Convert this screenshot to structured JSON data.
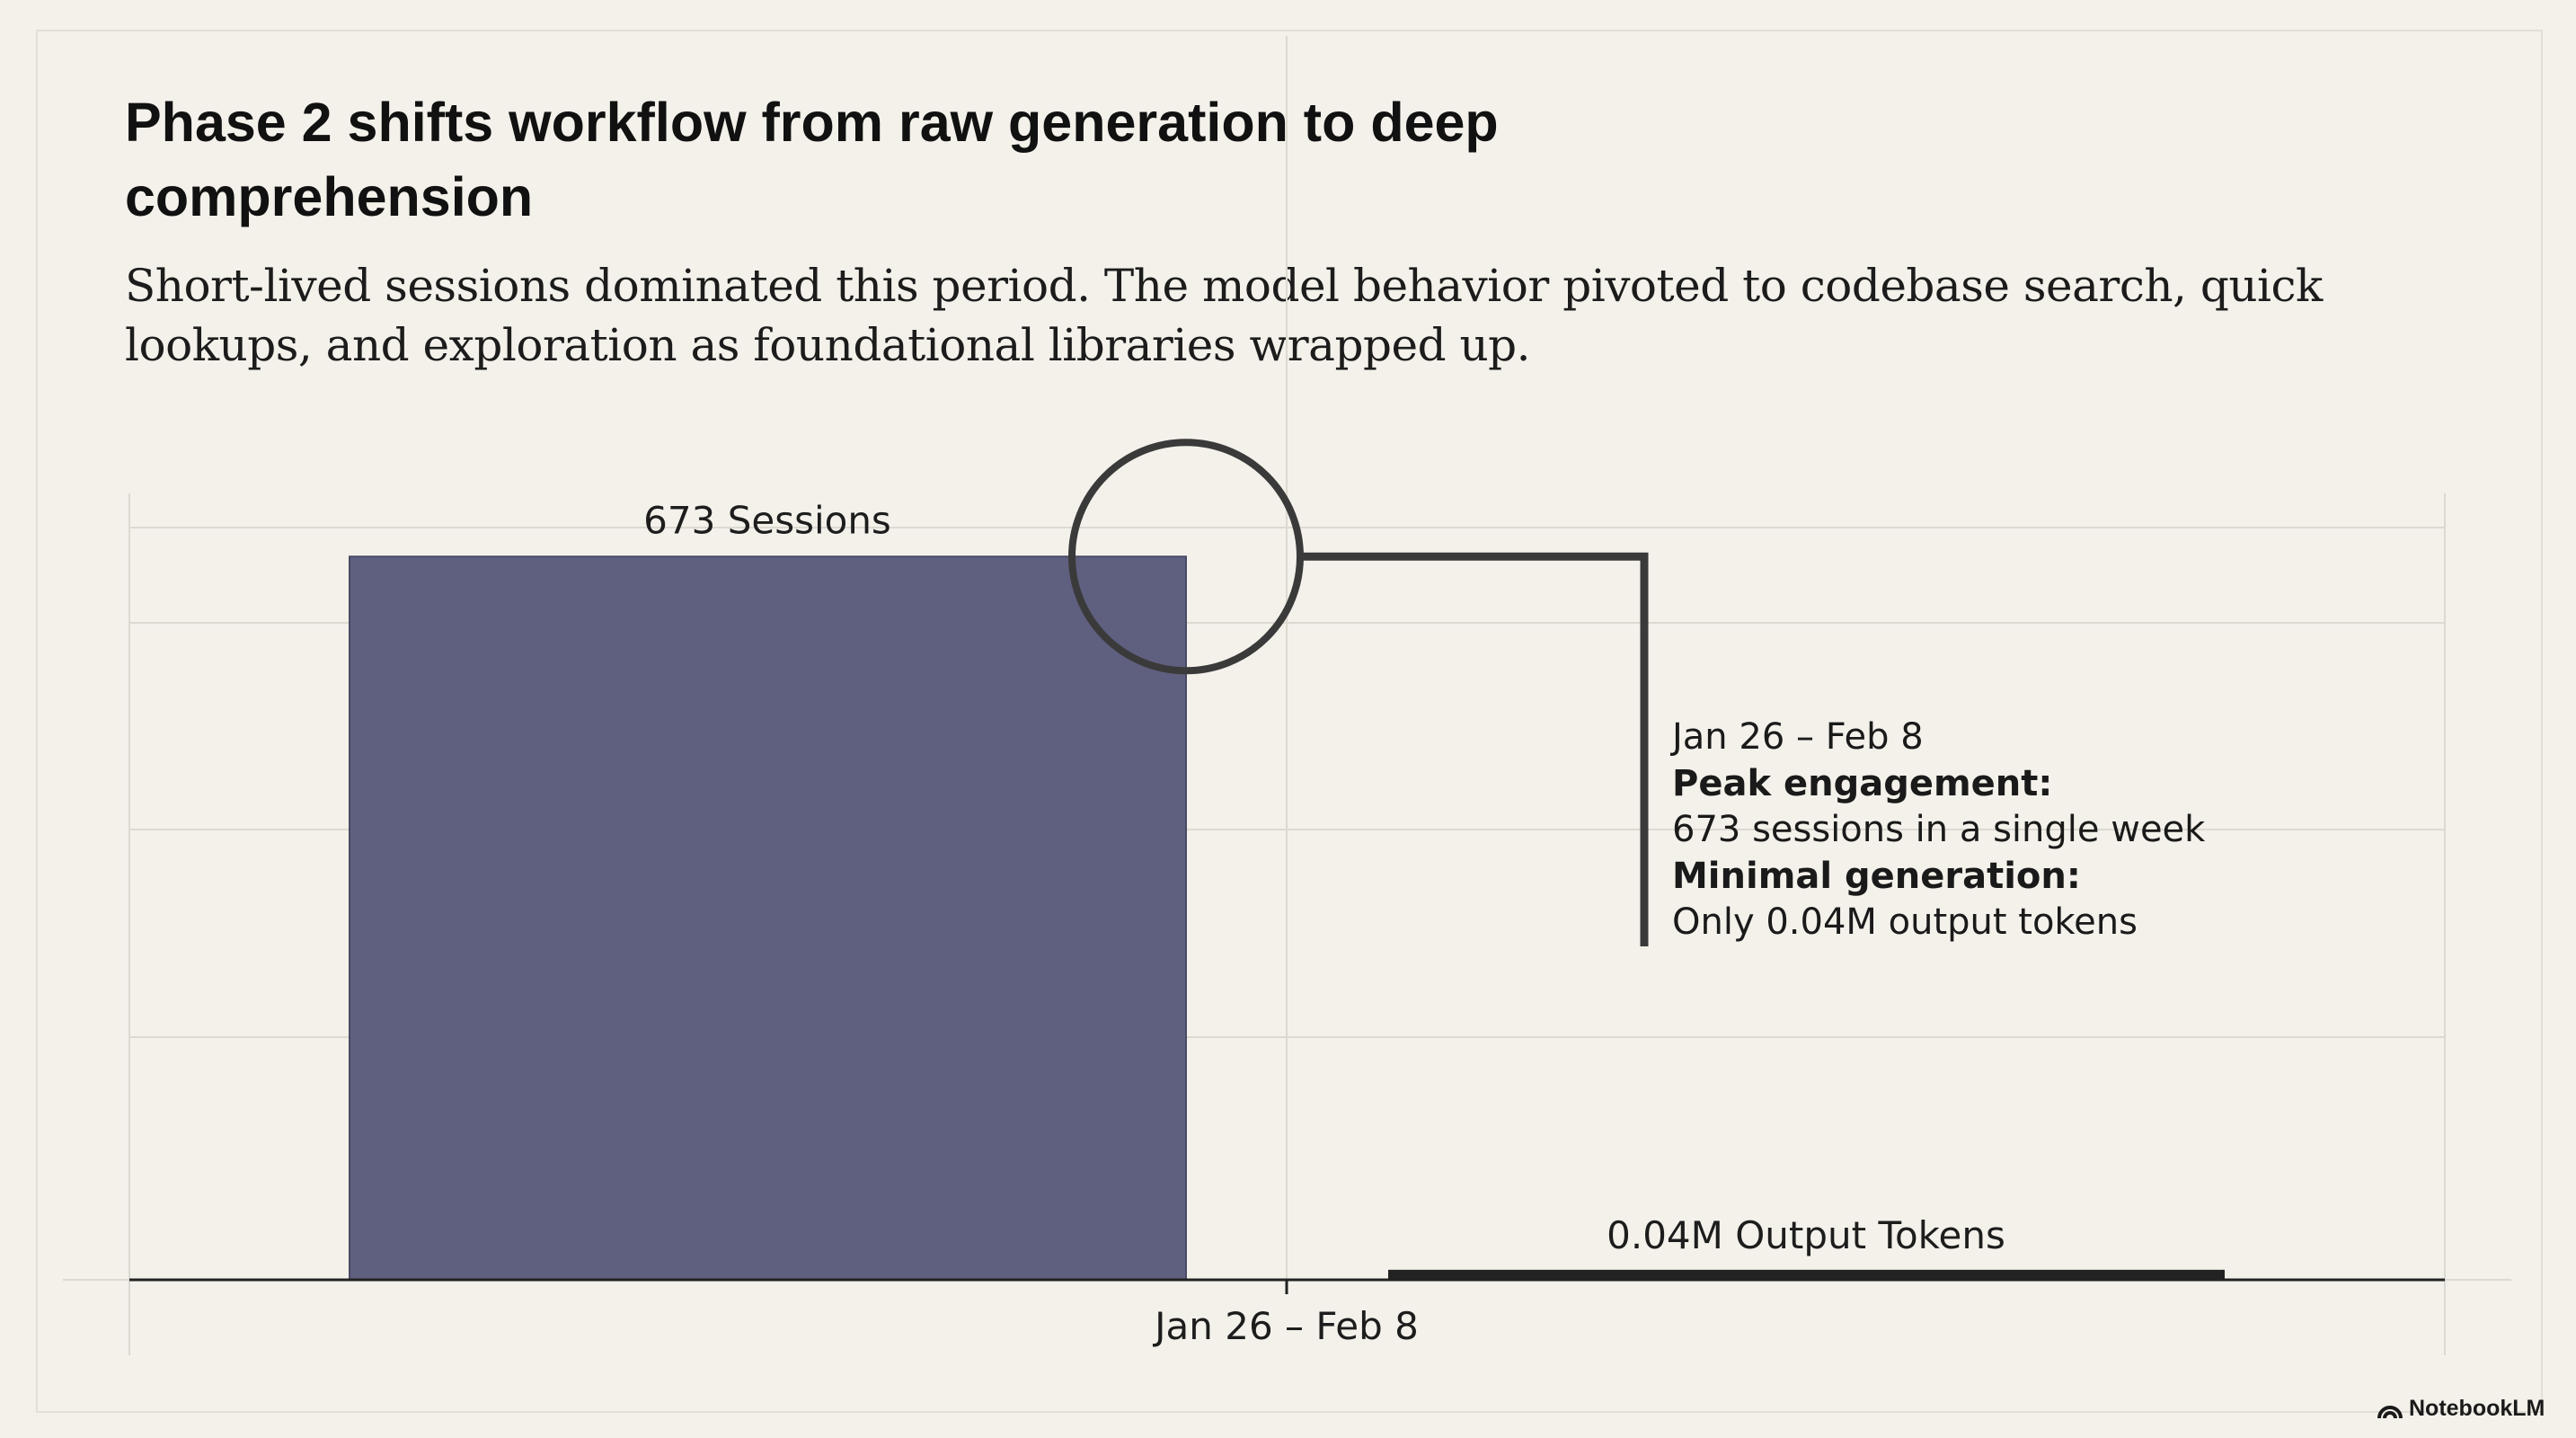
{
  "title": "Phase 2 shifts workflow from raw generation to deep comprehension",
  "subtitle": "Short-lived sessions dominated this period. The model behavior pivoted to codebase search, quick lookups, and exploration as foundational libraries wrapped up.",
  "annotation": {
    "date": "Jan 26 – Feb 8",
    "heading1": "Peak engagement:",
    "line1": "673 sessions in a single week",
    "heading2": "Minimal generation:",
    "line2": "Only 0.04M output tokens"
  },
  "brand": "NotebookLM",
  "colors": {
    "sessions_bar": "#5f5f7f",
    "tokens_bar": "#222222",
    "background": "#f3f1ea"
  },
  "chart_data": {
    "type": "bar",
    "categories": [
      "Jan 26 – Feb 8"
    ],
    "series": [
      {
        "name": "Sessions",
        "values": [
          673
        ],
        "label": "673 Sessions",
        "ylim": [
          0,
          700
        ]
      },
      {
        "name": "Output Tokens (M)",
        "values": [
          0.04
        ],
        "label": "0.04M Output Tokens",
        "ylim": [
          0,
          3
        ]
      }
    ],
    "grid": true,
    "highlight": "peak of Sessions bar circled"
  }
}
